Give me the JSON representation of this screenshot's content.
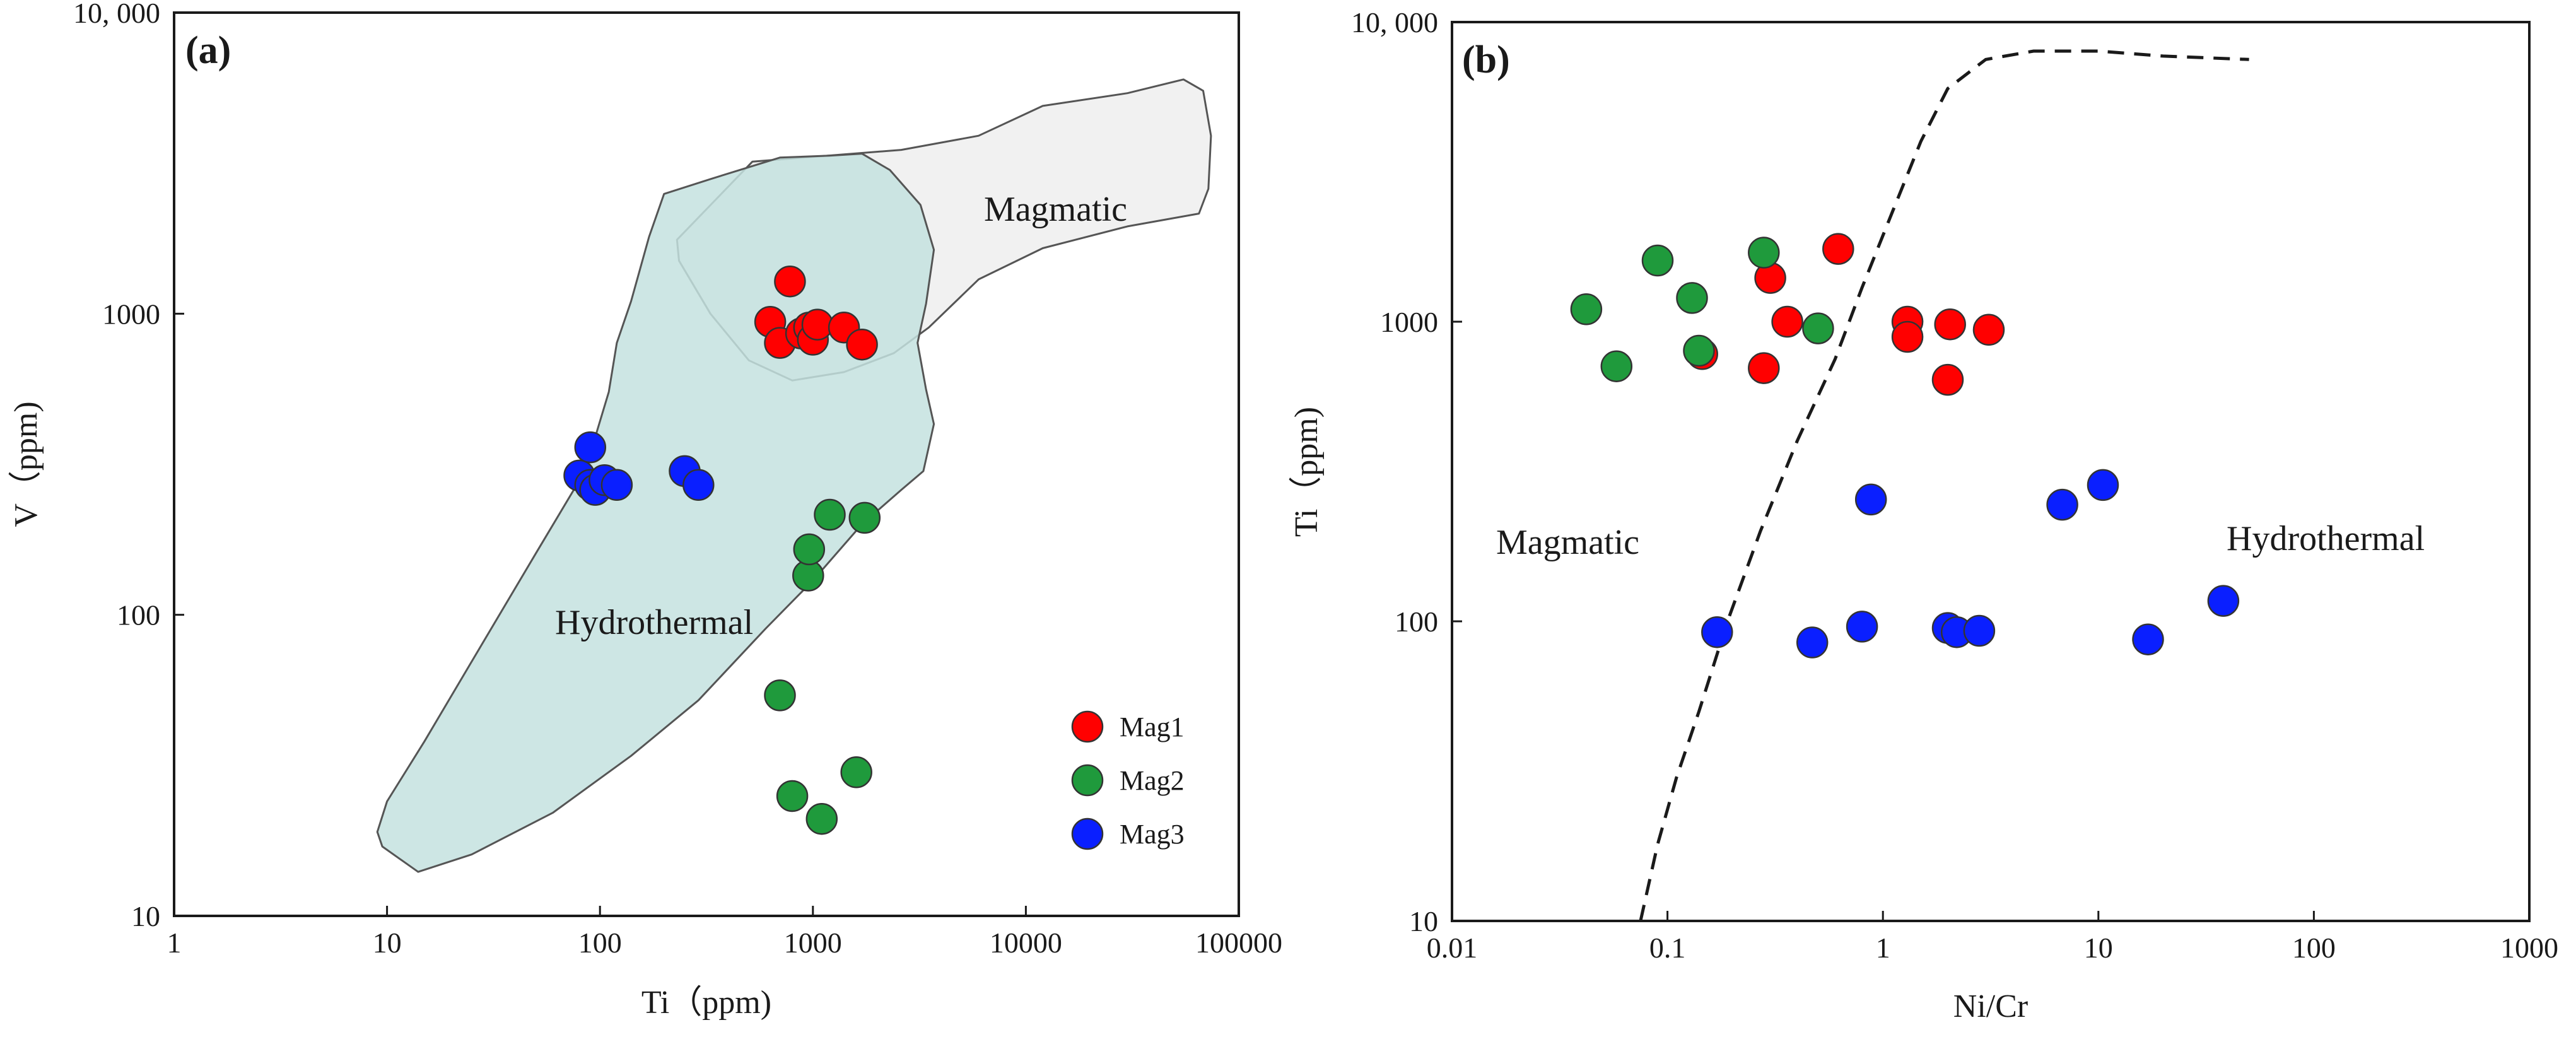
{
  "colors": {
    "Mag1": "#ff0000",
    "Mag2": "#1f9a3c",
    "Mag3": "#0a1fff",
    "hydrothermal_field": "#c4e2df",
    "magmatic_field": "#f1f1f1"
  },
  "chart_data": [
    {
      "type": "scatter",
      "panel_label": "(a)",
      "xlabel": "Ti（ppm)",
      "ylabel": "V（ppm)",
      "xscale": "log",
      "yscale": "log",
      "xlim": [
        1,
        100000
      ],
      "ylim": [
        10,
        10000
      ],
      "x_ticks": [
        "1",
        "10",
        "100",
        "1000",
        "10000",
        "100000"
      ],
      "y_ticks": [
        "10",
        "100",
        "1000",
        "10, 000"
      ],
      "legend": [
        "Mag1",
        "Mag2",
        "Mag3"
      ],
      "legend_position": "bottom-right",
      "fields": [
        {
          "name": "Magmatic",
          "polygon": [
            [
              230,
              1760
            ],
            [
              520,
              3200
            ],
            [
              2600,
              3500
            ],
            [
              6000,
              3900
            ],
            [
              12000,
              4900
            ],
            [
              30000,
              5400
            ],
            [
              55000,
              6000
            ],
            [
              68000,
              5500
            ],
            [
              74000,
              3900
            ],
            [
              72000,
              2600
            ],
            [
              65000,
              2150
            ],
            [
              30000,
              1950
            ],
            [
              12000,
              1650
            ],
            [
              6000,
              1300
            ],
            [
              3500,
              900
            ],
            [
              2400,
              740
            ],
            [
              1400,
              640
            ],
            [
              800,
              600
            ],
            [
              500,
              700
            ],
            [
              330,
              1000
            ],
            [
              235,
              1500
            ]
          ]
        },
        {
          "name": "Hydrothermal",
          "polygon": [
            [
              9.5,
              17
            ],
            [
              14,
              14
            ],
            [
              25,
              16
            ],
            [
              60,
              22
            ],
            [
              140,
              34
            ],
            [
              290,
              52
            ],
            [
              600,
              90
            ],
            [
              1000,
              130
            ],
            [
              1700,
              200
            ],
            [
              2600,
              260
            ],
            [
              3300,
              300
            ],
            [
              3700,
              430
            ],
            [
              3400,
              560
            ],
            [
              3100,
              800
            ],
            [
              3400,
              1080
            ],
            [
              3700,
              1630
            ],
            [
              3200,
              2300
            ],
            [
              2300,
              3000
            ],
            [
              1700,
              3400
            ],
            [
              1200,
              3350
            ],
            [
              700,
              3300
            ],
            [
              330,
              2800
            ],
            [
              200,
              2500
            ],
            [
              170,
              1800
            ],
            [
              140,
              1100
            ],
            [
              120,
              800
            ],
            [
              110,
              550
            ],
            [
              85,
              300
            ],
            [
              50,
              160
            ],
            [
              25,
              70
            ],
            [
              15,
              38
            ],
            [
              10,
              24
            ],
            [
              9,
              19
            ]
          ]
        }
      ],
      "series": [
        {
          "name": "Mag1",
          "points": [
            [
              630,
              940
            ],
            [
              700,
              800
            ],
            [
              780,
              1280
            ],
            [
              880,
              860
            ],
            [
              960,
              900
            ],
            [
              1000,
              820
            ],
            [
              1050,
              920
            ],
            [
              1400,
              900
            ],
            [
              1700,
              790
            ]
          ]
        },
        {
          "name": "Mag2",
          "points": [
            [
              700,
              54
            ],
            [
              800,
              25
            ],
            [
              950,
              135
            ],
            [
              960,
              165
            ],
            [
              1100,
              21
            ],
            [
              1200,
              215
            ],
            [
              1600,
              30
            ],
            [
              1750,
              210
            ]
          ]
        },
        {
          "name": "Mag3",
          "points": [
            [
              80,
              290
            ],
            [
              90,
              270
            ],
            [
              90,
              360
            ],
            [
              95,
              260
            ],
            [
              105,
              280
            ],
            [
              120,
              270
            ],
            [
              250,
              300
            ],
            [
              290,
              270
            ]
          ]
        }
      ]
    },
    {
      "type": "scatter",
      "panel_label": "(b)",
      "xlabel": "Ni/Cr",
      "ylabel": "Ti（ppm)",
      "xscale": "log",
      "yscale": "log",
      "xlim": [
        0.01,
        1000
      ],
      "ylim": [
        10,
        10000
      ],
      "x_ticks": [
        "0.01",
        "0.1",
        "1",
        "10",
        "100",
        "1000"
      ],
      "y_ticks": [
        "10",
        "100",
        "1000",
        "10, 000"
      ],
      "region_labels": [
        "Magmatic",
        "Hydrothermal"
      ],
      "boundary": [
        [
          0.075,
          10
        ],
        [
          0.09,
          18
        ],
        [
          0.11,
          30
        ],
        [
          0.14,
          50
        ],
        [
          0.19,
          100
        ],
        [
          0.27,
          200
        ],
        [
          0.4,
          400
        ],
        [
          0.6,
          750
        ],
        [
          0.8,
          1300
        ],
        [
          1.1,
          2300
        ],
        [
          1.5,
          4000
        ],
        [
          2,
          6000
        ],
        [
          3,
          7500
        ],
        [
          5,
          8000
        ],
        [
          10,
          8000
        ],
        [
          20,
          7700
        ],
        [
          50,
          7500
        ]
      ],
      "series": [
        {
          "name": "Mag1",
          "points": [
            [
              0.145,
              780
            ],
            [
              0.28,
              700
            ],
            [
              0.3,
              1400
            ],
            [
              0.36,
              1000
            ],
            [
              0.62,
              1750
            ],
            [
              1.3,
              1000
            ],
            [
              1.3,
              890
            ],
            [
              2.0,
              640
            ],
            [
              2.05,
              980
            ],
            [
              3.1,
              940
            ]
          ]
        },
        {
          "name": "Mag2",
          "points": [
            [
              0.042,
              1100
            ],
            [
              0.058,
              710
            ],
            [
              0.09,
              1600
            ],
            [
              0.13,
              1200
            ],
            [
              0.14,
              800
            ],
            [
              0.28,
              1700
            ],
            [
              0.5,
              950
            ]
          ]
        },
        {
          "name": "Mag3",
          "points": [
            [
              0.17,
              92
            ],
            [
              0.47,
              85
            ],
            [
              0.8,
              96
            ],
            [
              0.88,
              255
            ],
            [
              2.0,
              95
            ],
            [
              2.2,
              92
            ],
            [
              2.8,
              93
            ],
            [
              6.8,
              245
            ],
            [
              10.5,
              285
            ],
            [
              17,
              87
            ],
            [
              38,
              117
            ]
          ]
        }
      ]
    }
  ]
}
